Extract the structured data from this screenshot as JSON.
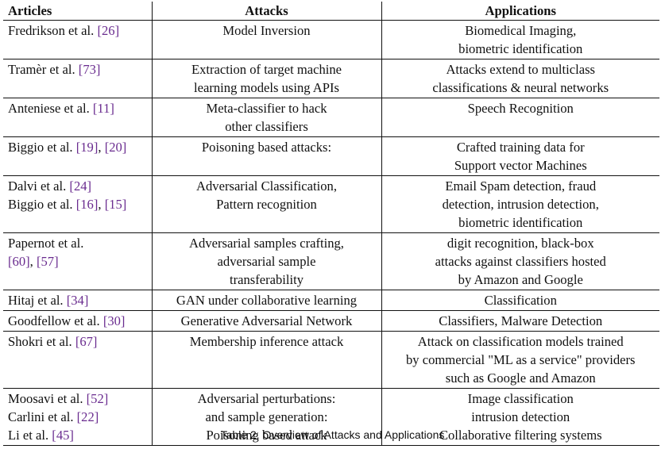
{
  "table": {
    "headers": [
      "Articles",
      "Attacks",
      "Applications"
    ],
    "rows": [
      {
        "articles": [
          [
            {
              "t": "Fredrikson et al. "
            },
            {
              "t": "[26]",
              "cite": true
            }
          ]
        ],
        "attacks": [
          "Model Inversion"
        ],
        "applications": [
          "Biomedical Imaging,",
          "biometric identification"
        ]
      },
      {
        "articles": [
          [
            {
              "t": "Tramèr et al. "
            },
            {
              "t": "[73]",
              "cite": true
            }
          ]
        ],
        "attacks": [
          "Extraction of target machine",
          "learning models using APIs"
        ],
        "applications": [
          "Attacks extend to multiclass",
          "classifications & neural networks"
        ]
      },
      {
        "articles": [
          [
            {
              "t": "Anteniese et al. "
            },
            {
              "t": "[11]",
              "cite": true
            }
          ]
        ],
        "attacks": [
          "Meta-classifier to hack",
          "other classifiers"
        ],
        "applications": [
          "Speech Recognition"
        ]
      },
      {
        "articles": [
          [
            {
              "t": "Biggio et al. "
            },
            {
              "t": "[19]",
              "cite": true
            },
            {
              "t": ", "
            },
            {
              "t": "[20]",
              "cite": true
            }
          ]
        ],
        "attacks": [
          "Poisoning based attacks:"
        ],
        "applications": [
          "Crafted training data for",
          "Support vector Machines"
        ]
      },
      {
        "articles": [
          [
            {
              "t": "Dalvi et al. "
            },
            {
              "t": "[24]",
              "cite": true
            }
          ],
          [
            {
              "t": "Biggio et al. "
            },
            {
              "t": "[16]",
              "cite": true
            },
            {
              "t": ", "
            },
            {
              "t": "[15]",
              "cite": true
            }
          ]
        ],
        "attacks": [
          "Adversarial Classification,",
          "Pattern recognition"
        ],
        "applications": [
          "Email Spam detection, fraud",
          "detection, intrusion detection,",
          "biometric identification"
        ]
      },
      {
        "articles": [
          [
            {
              "t": "Papernot et al."
            }
          ],
          [
            {
              "t": "[60]",
              "cite": true
            },
            {
              "t": ", "
            },
            {
              "t": "[57]",
              "cite": true
            }
          ]
        ],
        "attacks": [
          "Adversarial samples crafting,",
          "adversarial sample",
          "transferability"
        ],
        "applications": [
          "digit recognition, black-box",
          "attacks against classifiers hosted",
          "by Amazon and Google"
        ]
      },
      {
        "articles": [
          [
            {
              "t": "Hitaj et al. "
            },
            {
              "t": "[34]",
              "cite": true
            }
          ]
        ],
        "attacks": [
          "GAN under collaborative learning"
        ],
        "applications": [
          "Classification"
        ]
      },
      {
        "articles": [
          [
            {
              "t": "Goodfellow et al. "
            },
            {
              "t": "[30]",
              "cite": true
            }
          ]
        ],
        "attacks": [
          "Generative Adversarial Network"
        ],
        "applications": [
          "Classifiers, Malware Detection"
        ]
      },
      {
        "articles": [
          [
            {
              "t": "Shokri et al. "
            },
            {
              "t": "[67]",
              "cite": true
            }
          ]
        ],
        "attacks": [
          "Membership inference attack"
        ],
        "applications": [
          "Attack on classification models trained",
          "by commercial \"ML as a service\" providers",
          "such as Google and Amazon"
        ]
      },
      {
        "articles": [
          [
            {
              "t": "Moosavi et al. "
            },
            {
              "t": "[52]",
              "cite": true
            }
          ],
          [
            {
              "t": "Carlini et al. "
            },
            {
              "t": "[22]",
              "cite": true
            }
          ],
          [
            {
              "t": "Li et al. "
            },
            {
              "t": "[45]",
              "cite": true
            }
          ]
        ],
        "attacks": [
          "Adversarial perturbations:",
          "and sample generation:",
          "Poisoning based attack"
        ],
        "applications": [
          "Image classification",
          "intrusion detection",
          "Collaborative filtering systems"
        ]
      }
    ]
  },
  "caption": "Table 2.  Overview of Attacks and Applications",
  "colors": {
    "text": "#111111",
    "citation": "#6a2c8f"
  }
}
